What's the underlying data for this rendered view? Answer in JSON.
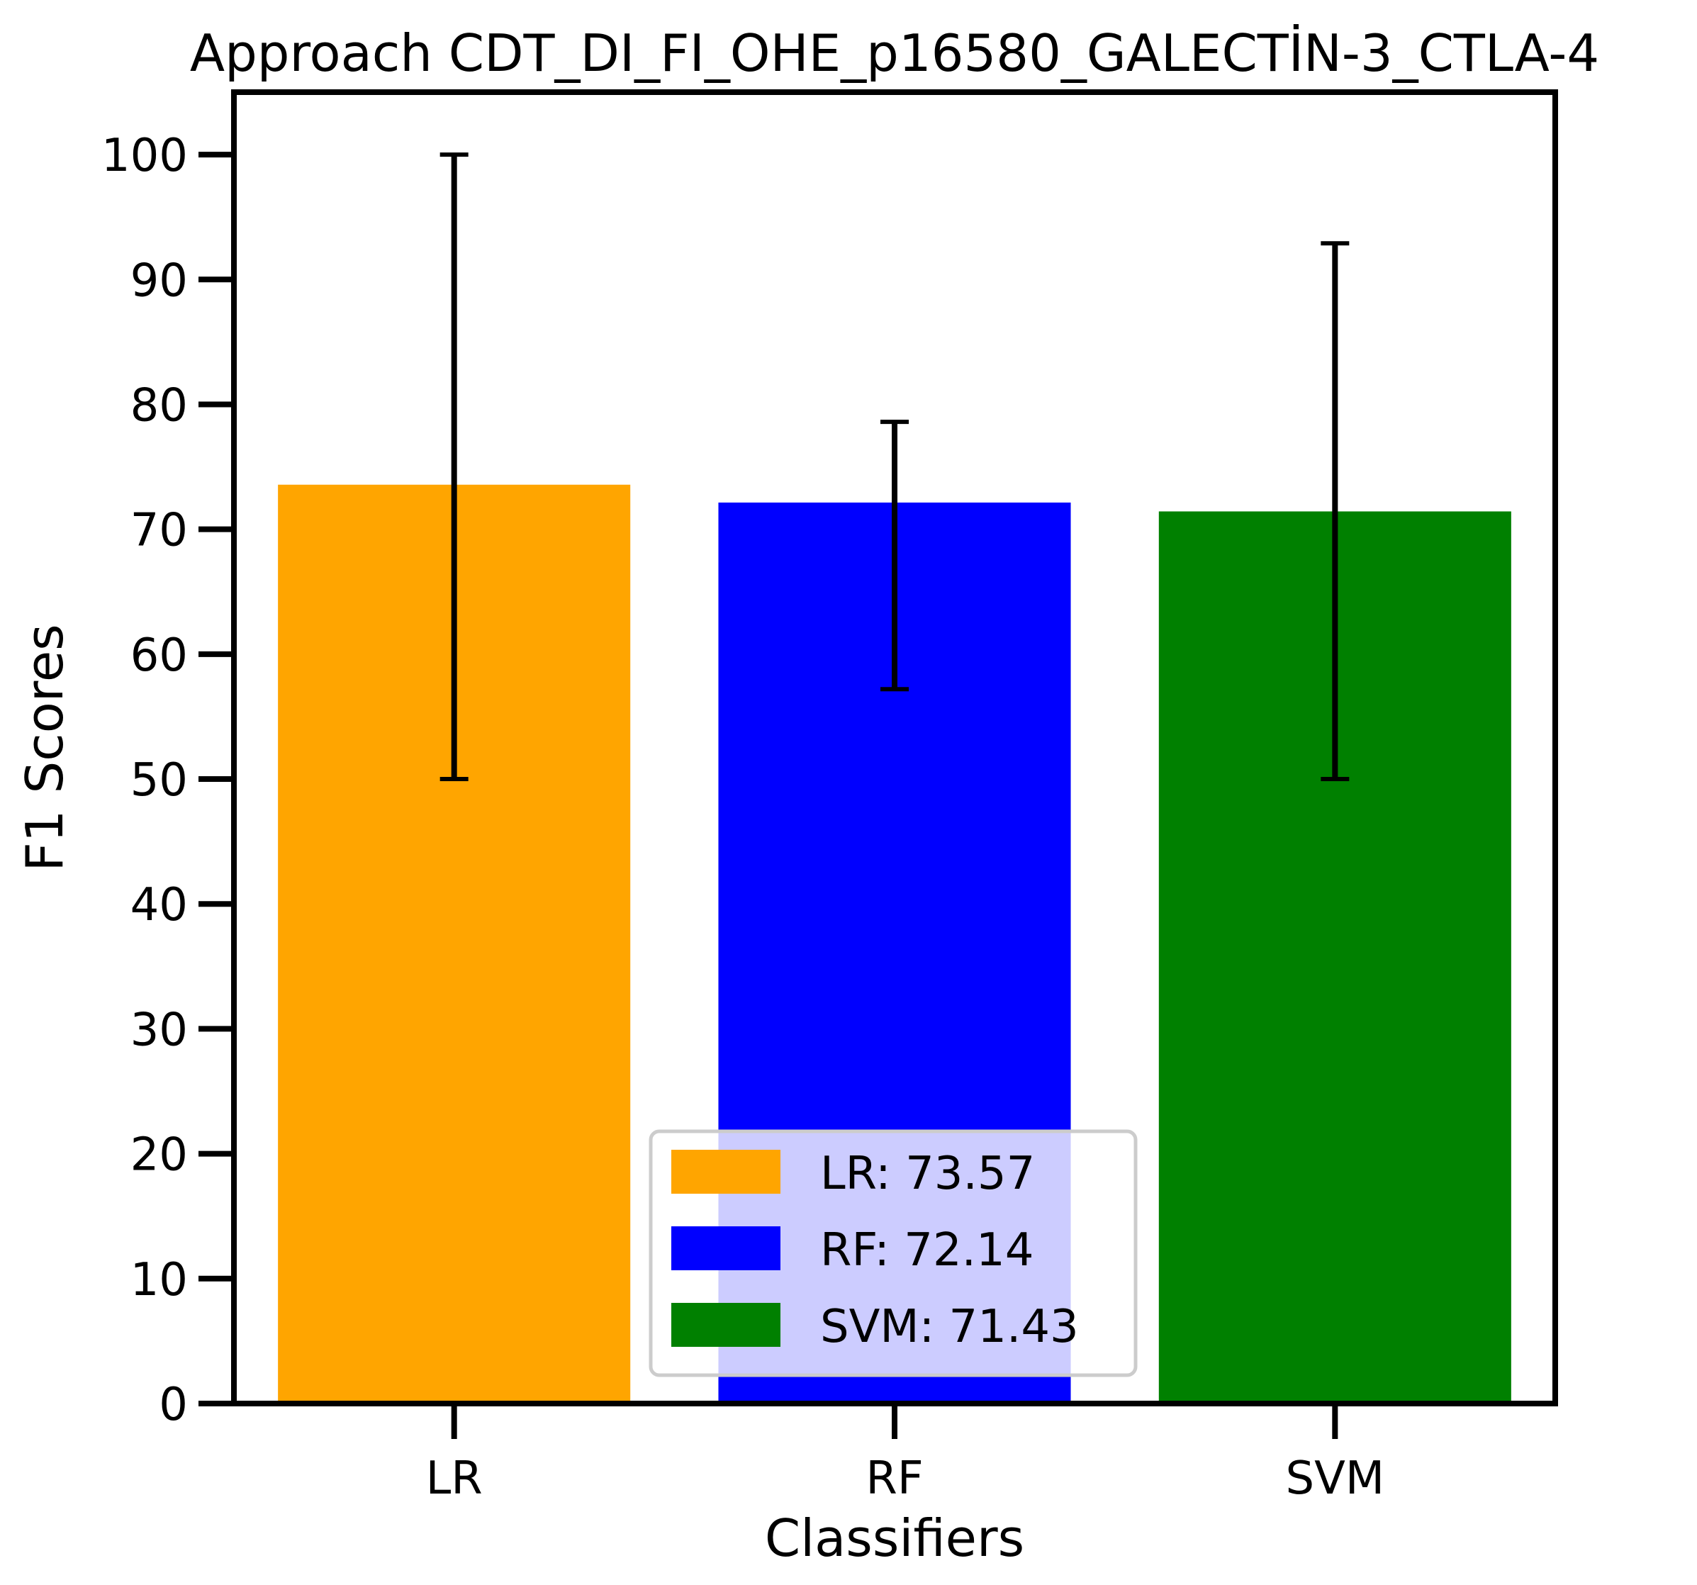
{
  "chart_data": {
    "type": "bar",
    "title": "Approach CDT_DI_FI_OHE_p16580_GALECTİN-3_CTLA-4",
    "xlabel": "Classifiers",
    "ylabel": "F1 Scores",
    "categories": [
      "LR",
      "RF",
      "SVM"
    ],
    "values": [
      73.57,
      72.14,
      71.43
    ],
    "error_low": [
      50.0,
      57.2,
      50.0
    ],
    "error_high": [
      100.0,
      78.6,
      92.9
    ],
    "colors": [
      "#ffa500",
      "#0000ff",
      "#008000"
    ],
    "ylim": [
      0,
      105
    ],
    "yticks": [
      0,
      10,
      20,
      30,
      40,
      50,
      60,
      70,
      80,
      90,
      100
    ],
    "grid": false,
    "legend": {
      "placement": "lower center",
      "entries": [
        "LR: 73.57",
        "RF: 72.14",
        "SVM: 71.43"
      ]
    }
  }
}
